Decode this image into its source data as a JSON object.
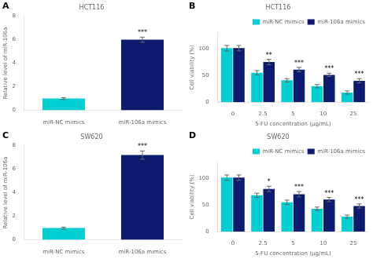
{
  "chart_data": [
    {
      "type": "bar",
      "panel_label": "A",
      "title": "HCT116",
      "ylabel": "Relative level of miR-106a",
      "categories": [
        "miR-NC mimics",
        "miR-106a mimics"
      ],
      "values": [
        1.0,
        6.0
      ],
      "errors": [
        0.08,
        0.22
      ],
      "colors": [
        "#00CED1",
        "#0D1B6E"
      ],
      "ylim": [
        0,
        8
      ],
      "yticks": [
        0,
        2,
        4,
        6,
        8
      ],
      "grid": false,
      "annotations": [
        {
          "text": "***",
          "category": "miR-106a mimics"
        }
      ]
    },
    {
      "type": "bar",
      "panel_label": "B",
      "title": "HCT116",
      "ylabel": "Cell viability (%)",
      "xlabel": "5-FU concentration (μg/mL)",
      "categories": [
        "0",
        "2.5",
        "5",
        "10",
        "25"
      ],
      "series": [
        {
          "name": "miR-NC mimics",
          "color": "#00CED1",
          "values": [
            101,
            55,
            41,
            30,
            18
          ],
          "errors": [
            5,
            4,
            3,
            3,
            3
          ]
        },
        {
          "name": "miR-106a mimics",
          "color": "#0D1B6E",
          "values": [
            101,
            75,
            61,
            51,
            40
          ],
          "errors": [
            5,
            5,
            4,
            3,
            4
          ]
        }
      ],
      "ylim": [
        0,
        130
      ],
      "yticks": [
        0,
        50,
        100
      ],
      "grid": false,
      "legend": "upper right",
      "annotations": [
        {
          "text": "**",
          "category": "2.5",
          "series": "miR-106a mimics"
        },
        {
          "text": "***",
          "category": "5",
          "series": "miR-106a mimics"
        },
        {
          "text": "***",
          "category": "10",
          "series": "miR-106a mimics"
        },
        {
          "text": "***",
          "category": "25",
          "series": "miR-106a mimics"
        }
      ]
    },
    {
      "type": "bar",
      "panel_label": "C",
      "title": "SW620",
      "ylabel": "Relative level of miR-106a",
      "categories": [
        "miR-NC mimics",
        "miR-106a mimics"
      ],
      "values": [
        1.0,
        7.2
      ],
      "errors": [
        0.08,
        0.35
      ],
      "colors": [
        "#00CED1",
        "#0D1B6E"
      ],
      "ylim": [
        0,
        8
      ],
      "yticks": [
        0,
        2,
        4,
        6,
        8
      ],
      "grid": false,
      "annotations": [
        {
          "text": "***",
          "category": "miR-106a mimics"
        }
      ]
    },
    {
      "type": "bar",
      "panel_label": "D",
      "title": "SW620",
      "ylabel": "Cell viability (%)",
      "xlabel": "5-FU concentration (μg/mL)",
      "categories": [
        "0",
        "2.5",
        "5",
        "10",
        "25"
      ],
      "series": [
        {
          "name": "miR-NC mimics",
          "color": "#00CED1",
          "values": [
            101,
            68,
            55,
            43,
            28
          ],
          "errors": [
            5,
            4,
            4,
            3,
            3
          ]
        },
        {
          "name": "miR-106a mimics",
          "color": "#0D1B6E",
          "values": [
            101,
            80,
            70,
            60,
            48
          ],
          "errors": [
            5,
            5,
            5,
            4,
            4
          ]
        }
      ],
      "ylim": [
        0,
        130
      ],
      "yticks": [
        0,
        50,
        100
      ],
      "grid": false,
      "legend": "upper right",
      "annotations": [
        {
          "text": "*",
          "category": "2.5",
          "series": "miR-106a mimics"
        },
        {
          "text": "***",
          "category": "5",
          "series": "miR-106a mimics"
        },
        {
          "text": "***",
          "category": "10",
          "series": "miR-106a mimics"
        },
        {
          "text": "***",
          "category": "25",
          "series": "miR-106a mimics"
        }
      ]
    }
  ]
}
